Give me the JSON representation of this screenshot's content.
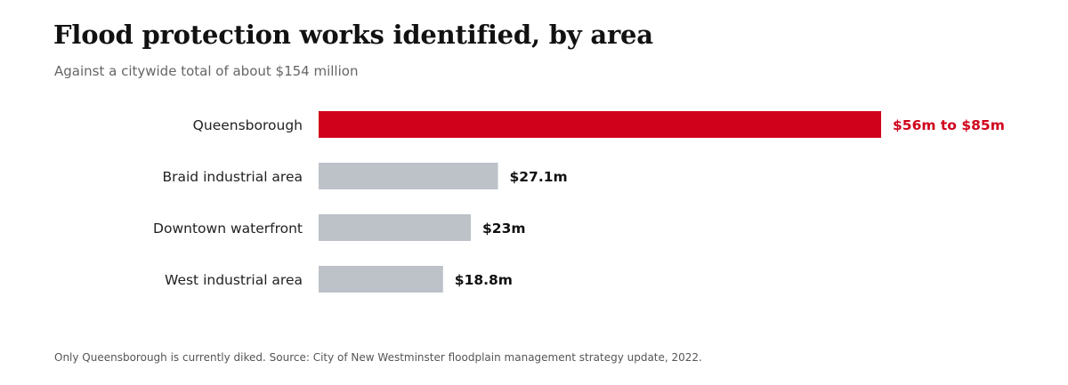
{
  "header": {
    "title": "Flood protection works identified, by area",
    "subtitle": "Against a citywide total of about $154 million"
  },
  "footer": {
    "note": "Only Queensborough is currently diked. Source: City of New Westminster floodplain management strategy update, 2022."
  },
  "colors": {
    "highlight": "#d0021b",
    "bar": "#bcc2c8",
    "label": "#222222",
    "value": "#111111"
  },
  "chart_data": {
    "type": "bar",
    "orientation": "horizontal",
    "title": "Flood protection works identified, by area",
    "subtitle": "Against a citywide total of about $154 million",
    "xlabel": "",
    "ylabel": "",
    "xlim": [
      0,
      85
    ],
    "grid": false,
    "categories": [
      "Queensborough",
      "Braid industrial area",
      "Downtown waterfront",
      "West industrial area"
    ],
    "values": [
      85,
      27.1,
      23,
      18.8
    ],
    "ranges": [
      [
        56,
        85
      ],
      null,
      null,
      null
    ],
    "value_labels": [
      "$56m to $85m",
      "$27.1m",
      "$23m",
      "$18.8m"
    ],
    "highlighted": [
      "Queensborough"
    ],
    "units": "millions of dollars"
  }
}
